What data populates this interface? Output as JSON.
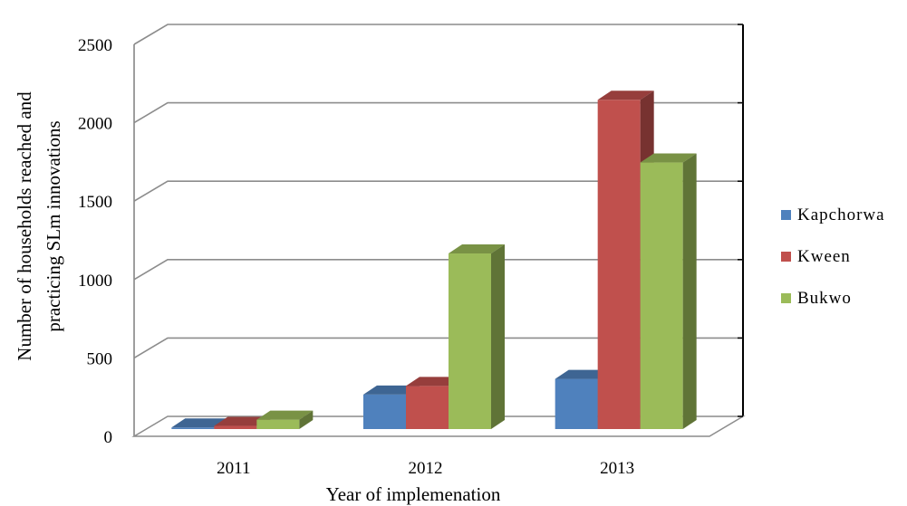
{
  "chart_data": {
    "type": "bar",
    "style": "3d-clustered-column",
    "categories": [
      "2011",
      "2012",
      "2013"
    ],
    "series": [
      {
        "name": "Kapchorwa",
        "values": [
          10,
          220,
          320
        ],
        "color": "#4F81BD"
      },
      {
        "name": "Kween",
        "values": [
          20,
          275,
          2100
        ],
        "color": "#C0504D"
      },
      {
        "name": "Bukwo",
        "values": [
          60,
          1120,
          1700
        ],
        "color": "#9BBB59"
      }
    ],
    "xlabel": "Year of implemenation",
    "ylabel_lines": [
      "Number of households reached and",
      "practicing SLm innovations"
    ],
    "ylim": [
      0,
      2500
    ],
    "yticks": [
      0,
      500,
      1000,
      1500,
      2000,
      2500
    ],
    "grid": true,
    "legend": "right"
  }
}
